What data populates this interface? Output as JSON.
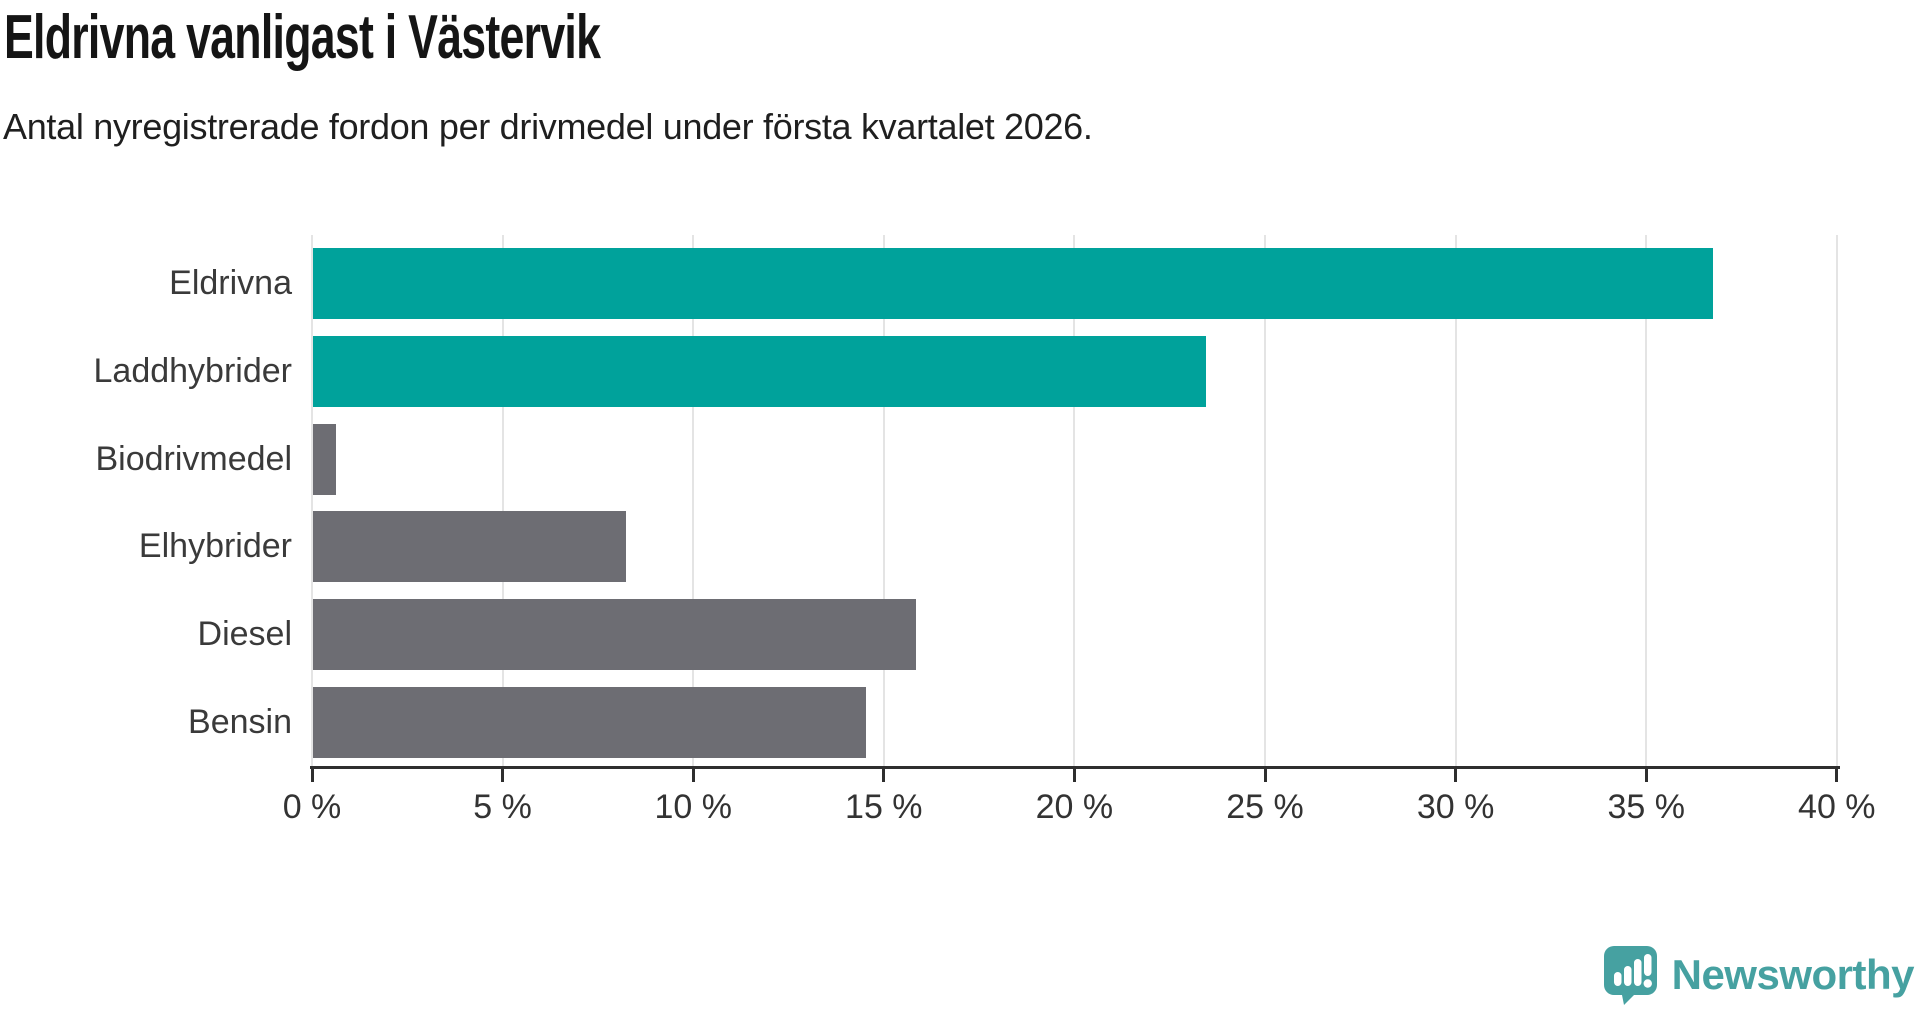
{
  "header": {
    "title": "Eldrivna vanligast i Västervik",
    "subtitle": "Antal nyregistrerade fordon per drivmedel under första kvartalet 2026."
  },
  "chart_data": {
    "type": "bar",
    "orientation": "horizontal",
    "title": "Eldrivna vanligast i Västervik",
    "subtitle": "Antal nyregistrerade fordon per drivmedel under första kvartalet 2026.",
    "categories": [
      "Eldrivna",
      "Laddhybrider",
      "Biodrivmedel",
      "Elhybrider",
      "Diesel",
      "Bensin"
    ],
    "values": [
      36.7,
      23.4,
      0.6,
      8.2,
      15.8,
      14.5
    ],
    "unit": "%",
    "xlim": [
      0,
      40
    ],
    "x_ticks": [
      0,
      5,
      10,
      15,
      20,
      25,
      30,
      35,
      40
    ],
    "x_tick_labels": [
      "0 %",
      "5 %",
      "10 %",
      "15 %",
      "20 %",
      "25 %",
      "30 %",
      "35 %",
      "40 %"
    ],
    "bar_colors": [
      "#00A29B",
      "#00A29B",
      "#6D6D73",
      "#6D6D73",
      "#6D6D73",
      "#6D6D73"
    ],
    "highlight_color": "#00A29B",
    "default_color": "#6D6D73",
    "grid": true,
    "gridline_color": "#E4E4E4",
    "axis_color": "#2E2E2E",
    "label_color": "#3A3A3A"
  },
  "footer": {
    "brand": "Newsworthy",
    "brand_color": "#46A1A1",
    "logo_icon": "newsworthy-speech-bubble-bar-chart-icon"
  }
}
